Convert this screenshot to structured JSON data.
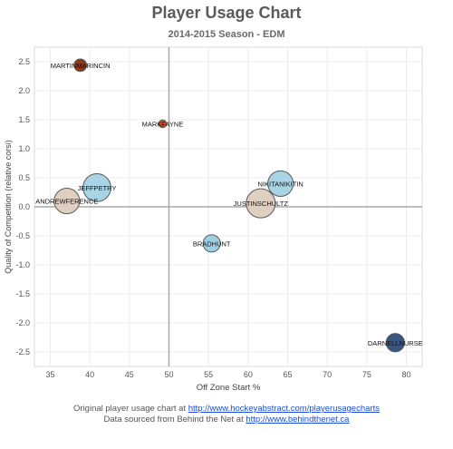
{
  "chart_data": {
    "type": "scatter",
    "title": "Player Usage Chart",
    "subtitle": "2014-2015 Season - EDM",
    "xlabel": "Off Zone Start %",
    "ylabel": "Quality of Competition (relative corsi)",
    "xlim": [
      33,
      82
    ],
    "ylim": [
      -2.75,
      2.75
    ],
    "xticks": [
      35,
      40,
      45,
      50,
      55,
      60,
      65,
      70,
      75,
      80
    ],
    "yticks": [
      2.5,
      2.0,
      1.5,
      1.0,
      0.5,
      0.0,
      -0.5,
      -1.0,
      -1.5,
      -2.0,
      -2.5
    ],
    "ref_lines": {
      "x": 50,
      "y": 0
    },
    "grid": true,
    "points": [
      {
        "label": "MARTINMARINCIN",
        "x": 38.8,
        "y": 2.44,
        "size": 0.3,
        "color": "#8b3a1a"
      },
      {
        "label": "MARKFAYNE",
        "x": 49.2,
        "y": 1.43,
        "size": 0.1,
        "color": "#c0562a"
      },
      {
        "label": "JEFFPETRY",
        "x": 40.9,
        "y": 0.33,
        "size": 0.95,
        "color": "#a8d4e6"
      },
      {
        "label": "ANDREWFERENCE",
        "x": 37.1,
        "y": 0.1,
        "size": 0.85,
        "color": "#dfcfc0"
      },
      {
        "label": "NIKITANIKITIN",
        "x": 64.1,
        "y": 0.4,
        "size": 0.85,
        "color": "#a8d4e6"
      },
      {
        "label": "JUSTINSCHULTZ",
        "x": 61.6,
        "y": 0.06,
        "size": 1.0,
        "color": "#dfcfc0"
      },
      {
        "label": "BRADHUNT",
        "x": 55.4,
        "y": -0.63,
        "size": 0.5,
        "color": "#9fd0e6"
      },
      {
        "label": "DARNELLNURSE",
        "x": 78.6,
        "y": -2.34,
        "size": 0.55,
        "color": "#3a5680"
      }
    ]
  },
  "credits": {
    "line1_prefix": "Original player usage chart at ",
    "line1_link": "http://www.hockeyabstract.com/playerusagecharts",
    "line2_prefix": "Data sourced from Behind the Net at ",
    "line2_link": "http://www.behindthenet.ca"
  }
}
